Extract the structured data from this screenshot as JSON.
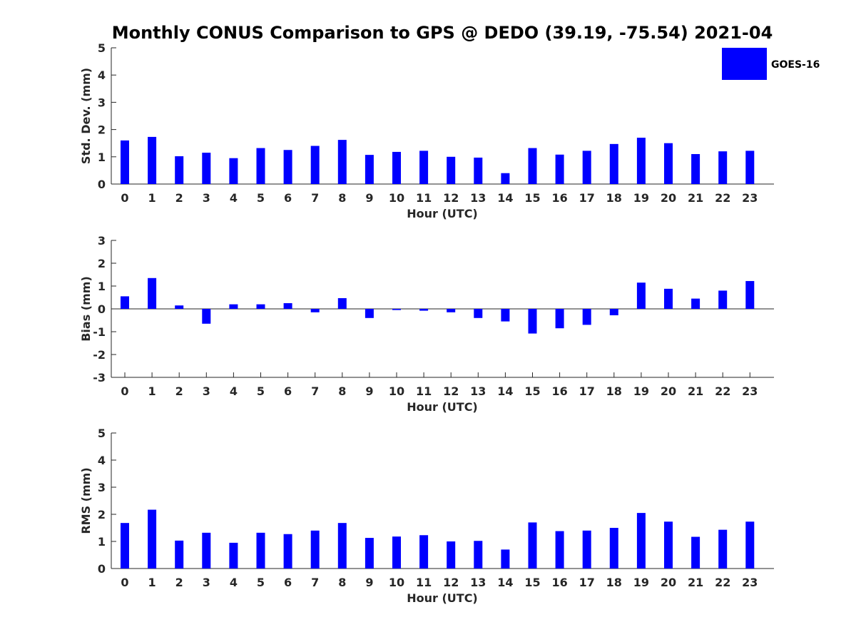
{
  "title": "Monthly CONUS Comparison to GPS @ DEDO (39.19, -75.54) 2021-04",
  "legend": {
    "label": "GOES-16",
    "color": "#0000ff",
    "placement": "top-right"
  },
  "chart_data": [
    {
      "type": "bar",
      "xlabel": "Hour (UTC)",
      "ylabel": "Std. Dev. (mm)",
      "ylim": [
        0,
        5
      ],
      "yticks": [
        0,
        1,
        2,
        3,
        4,
        5
      ],
      "categories": [
        "0",
        "1",
        "2",
        "3",
        "4",
        "5",
        "6",
        "7",
        "8",
        "9",
        "10",
        "11",
        "12",
        "13",
        "14",
        "15",
        "16",
        "17",
        "18",
        "19",
        "20",
        "21",
        "22",
        "23"
      ],
      "series": [
        {
          "name": "GOES-16",
          "color": "#0000ff",
          "values": [
            1.6,
            1.73,
            1.02,
            1.15,
            0.95,
            1.32,
            1.25,
            1.4,
            1.62,
            1.07,
            1.18,
            1.22,
            1.0,
            0.97,
            0.4,
            1.32,
            1.08,
            1.22,
            1.47,
            1.7,
            1.5,
            1.1,
            1.2,
            1.22
          ]
        }
      ]
    },
    {
      "type": "bar",
      "xlabel": "Hour (UTC)",
      "ylabel": "Bias (mm)",
      "ylim": [
        -3,
        3
      ],
      "yticks": [
        -3,
        -2,
        -1,
        0,
        1,
        2,
        3
      ],
      "categories": [
        "0",
        "1",
        "2",
        "3",
        "4",
        "5",
        "6",
        "7",
        "8",
        "9",
        "10",
        "11",
        "12",
        "13",
        "14",
        "15",
        "16",
        "17",
        "18",
        "19",
        "20",
        "21",
        "22",
        "23"
      ],
      "series": [
        {
          "name": "GOES-16",
          "color": "#0000ff",
          "values": [
            0.55,
            1.35,
            0.15,
            -0.65,
            0.2,
            0.2,
            0.25,
            -0.15,
            0.47,
            -0.4,
            -0.05,
            -0.08,
            -0.15,
            -0.4,
            -0.55,
            -1.08,
            -0.85,
            -0.7,
            -0.28,
            1.15,
            0.88,
            0.45,
            0.8,
            1.22
          ]
        }
      ]
    },
    {
      "type": "bar",
      "xlabel": "Hour (UTC)",
      "ylabel": "RMS (mm)",
      "ylim": [
        0,
        5
      ],
      "yticks": [
        0,
        1,
        2,
        3,
        4,
        5
      ],
      "categories": [
        "0",
        "1",
        "2",
        "3",
        "4",
        "5",
        "6",
        "7",
        "8",
        "9",
        "10",
        "11",
        "12",
        "13",
        "14",
        "15",
        "16",
        "17",
        "18",
        "19",
        "20",
        "21",
        "22",
        "23"
      ],
      "series": [
        {
          "name": "GOES-16",
          "color": "#0000ff",
          "values": [
            1.68,
            2.17,
            1.03,
            1.32,
            0.95,
            1.32,
            1.27,
            1.4,
            1.68,
            1.13,
            1.18,
            1.23,
            1.0,
            1.02,
            0.7,
            1.7,
            1.38,
            1.4,
            1.5,
            2.05,
            1.73,
            1.17,
            1.43,
            1.73
          ]
        }
      ]
    }
  ]
}
